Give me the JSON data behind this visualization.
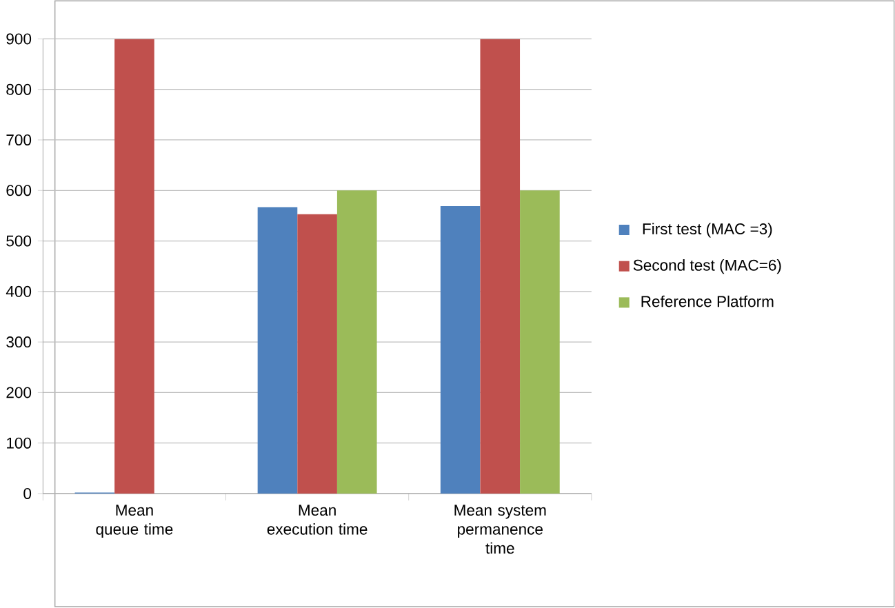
{
  "chart_data": {
    "type": "bar",
    "categories": [
      "Mean queue time",
      "Mean execution time",
      "Mean system permanence time"
    ],
    "series": [
      {
        "name": "First test (MAC =3)",
        "color": "#4f81bd",
        "values": [
          2,
          567,
          569
        ]
      },
      {
        "name": "Second test (MAC=6)",
        "color": "#c0504d",
        "values": [
          900,
          553,
          900
        ]
      },
      {
        "name": "Reference Platform",
        "color": "#9bbb59",
        "values": [
          null,
          600,
          600
        ]
      }
    ],
    "ylim": [
      0,
      900
    ],
    "yticks": [
      0,
      100,
      200,
      300,
      400,
      500,
      600,
      700,
      800,
      900
    ],
    "grid": "y",
    "legend": "right"
  }
}
